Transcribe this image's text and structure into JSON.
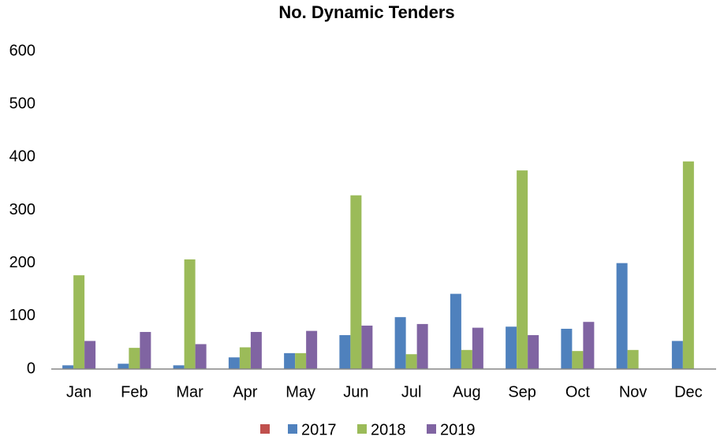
{
  "chart_data": {
    "type": "bar",
    "title": "No. Dynamic Tenders",
    "categories": [
      "Jan",
      "Feb",
      "Mar",
      "Apr",
      "May",
      "Jun",
      "Jul",
      "Aug",
      "Sep",
      "Oct",
      "Nov",
      "Dec"
    ],
    "series": [
      {
        "name": "2017",
        "color": "#4f81bd",
        "values": [
          7,
          10,
          7,
          22,
          30,
          64,
          98,
          142,
          80,
          76,
          200,
          53
        ]
      },
      {
        "name": "2018",
        "color": "#9bbb59",
        "values": [
          177,
          40,
          207,
          41,
          30,
          328,
          28,
          36,
          375,
          34,
          36,
          392
        ]
      },
      {
        "name": "2019",
        "color": "#8064a2",
        "values": [
          53,
          70,
          47,
          70,
          72,
          82,
          85,
          78,
          64,
          89,
          null,
          null
        ]
      }
    ],
    "ylim": [
      0,
      600
    ],
    "yticks": [
      0,
      100,
      200,
      300,
      400,
      500,
      600
    ],
    "grid": false
  }
}
